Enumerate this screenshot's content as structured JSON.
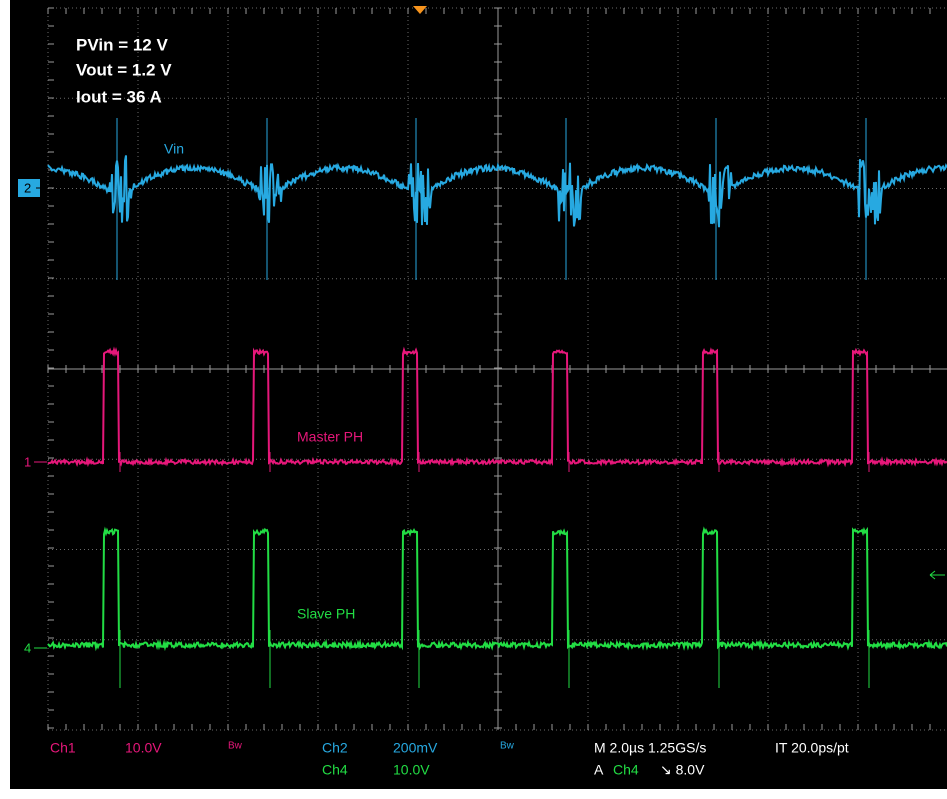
{
  "conditions": [
    "PVin = 12 V",
    "Vout = 1.2 V",
    "Iout = 36 A"
  ],
  "trace_labels": {
    "ch2": "Vin",
    "ch1": "Master PH",
    "ch4": "Slave PH"
  },
  "channel_markers": {
    "ch2": "2",
    "ch1": "1",
    "ch4": "4"
  },
  "readout": {
    "ch1_name": "Ch1",
    "ch1_scale": "10.0V",
    "ch1_bw": "Bw",
    "ch2_name": "Ch2",
    "ch2_scale": "200mV",
    "ch2_bw": "Bw",
    "ch4_name": "Ch4",
    "ch4_scale": "10.0V",
    "timebase": "M 2.0µs 1.25GS/s",
    "interp": "IT 20.0ps/pt",
    "trigger_label": "A",
    "trigger_source": "Ch4",
    "trigger_level": "↘ 8.0V"
  }
}
